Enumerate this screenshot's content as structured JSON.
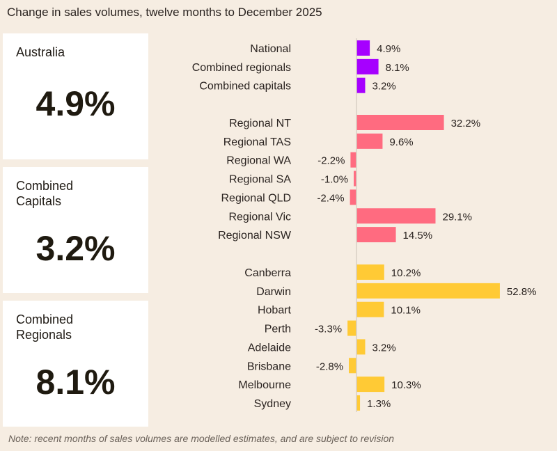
{
  "title": "Change in sales volumes, twelve months to December 2025",
  "cards": [
    {
      "label": "Australia",
      "value": "4.9%"
    },
    {
      "label": "Combined\nCapitals",
      "value": "3.2%"
    },
    {
      "label": "Combined\nRegionals",
      "value": "8.1%"
    }
  ],
  "note": "Note: recent months of sales volumes are modelled estimates, and are subject to revision",
  "chart_data": {
    "type": "bar",
    "orientation": "horizontal",
    "title": "Change in sales volumes, twelve months to December 2025",
    "unit": "%",
    "groups": [
      {
        "name": "summary",
        "color": "#a600ff",
        "categories": [
          "National",
          "Combined regionals",
          "Combined capitals"
        ],
        "values": [
          4.9,
          8.1,
          3.2
        ]
      },
      {
        "name": "regions",
        "color": "#ff6b80",
        "categories": [
          "Regional NT",
          "Regional TAS",
          "Regional WA",
          "Regional SA",
          "Regional QLD",
          "Regional Vic",
          "Regional NSW"
        ],
        "values": [
          32.2,
          9.6,
          -2.2,
          -1.0,
          -2.4,
          29.1,
          14.5
        ]
      },
      {
        "name": "capitals",
        "color": "#ffca35",
        "categories": [
          "Canberra",
          "Darwin",
          "Hobart",
          "Perth",
          "Adelaide",
          "Brisbane",
          "Melbourne",
          "Sydney"
        ],
        "values": [
          10.2,
          52.8,
          10.1,
          -3.3,
          3.2,
          -2.8,
          10.3,
          1.3
        ]
      }
    ]
  }
}
